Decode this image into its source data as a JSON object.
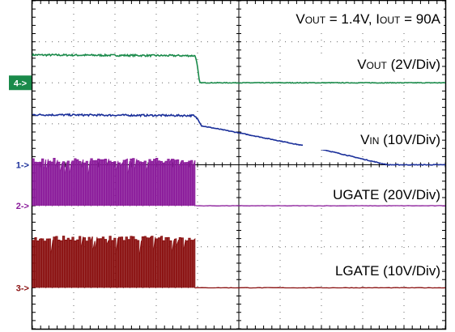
{
  "chart_data": {
    "type": "line",
    "title": "",
    "annotations": [
      {
        "parts": [
          {
            "t": "V"
          },
          {
            "t": "OUT",
            "sub": true
          },
          {
            "t": " = 1.4V,  I"
          },
          {
            "t": "OUT",
            "sub": true
          },
          {
            "t": " = 90A"
          }
        ]
      }
    ],
    "xlim": [
      0,
      10
    ],
    "ylim": [
      -4,
      4
    ],
    "grid": true,
    "divisions": {
      "x": 10,
      "y": 8
    },
    "series": [
      {
        "name_parts": [
          {
            "t": "V"
          },
          {
            "t": "OUT",
            "sub": true
          },
          {
            "t": " (2V/Div)"
          }
        ],
        "marker": "4->",
        "color": "#1a8a4a",
        "marker_color": "#1a8a4a",
        "marker_boxed": true,
        "offset": 2.0,
        "kind": "step",
        "x": [
          0,
          3.95,
          4.0,
          4.05,
          10
        ],
        "levels": [
          0.68,
          0.66,
          0.38,
          0.0,
          0.0
        ],
        "noise": 0.02
      },
      {
        "name_parts": [
          {
            "t": "V"
          },
          {
            "t": "IN",
            "sub": true
          },
          {
            "t": " (10V/Div)"
          }
        ],
        "marker": "1->",
        "color": "#1a2f9a",
        "marker_color": "#1a2f9a",
        "marker_boxed": false,
        "offset": 0.0,
        "kind": "decay",
        "x": [
          0,
          3.9,
          4.0,
          4.1,
          5.0,
          6.0,
          7.0,
          8.0,
          8.6,
          10
        ],
        "levels": [
          1.22,
          1.2,
          1.12,
          0.95,
          0.78,
          0.58,
          0.38,
          0.14,
          0.0,
          0.0
        ],
        "noise": 0.02
      },
      {
        "name_parts": [
          {
            "t": "UGATE (20V/Div)"
          }
        ],
        "marker": "2->",
        "color": "#8a1a9a",
        "marker_color": "#8a1a9a",
        "marker_boxed": false,
        "offset": -1.0,
        "kind": "switching",
        "x": [
          0,
          3.95,
          4.0,
          10
        ],
        "levels": [
          1.1,
          1.1,
          0.0,
          0.0
        ],
        "noise": 0.01
      },
      {
        "name_parts": [
          {
            "t": "LGATE (10V/Div)"
          }
        ],
        "marker": "3->",
        "color": "#8a1010",
        "marker_color": "#8a1010",
        "marker_boxed": false,
        "offset": -3.0,
        "kind": "switching",
        "x": [
          0,
          3.95,
          4.0,
          10
        ],
        "levels": [
          1.2,
          1.2,
          0.0,
          0.0
        ],
        "noise": 0.01
      }
    ]
  }
}
